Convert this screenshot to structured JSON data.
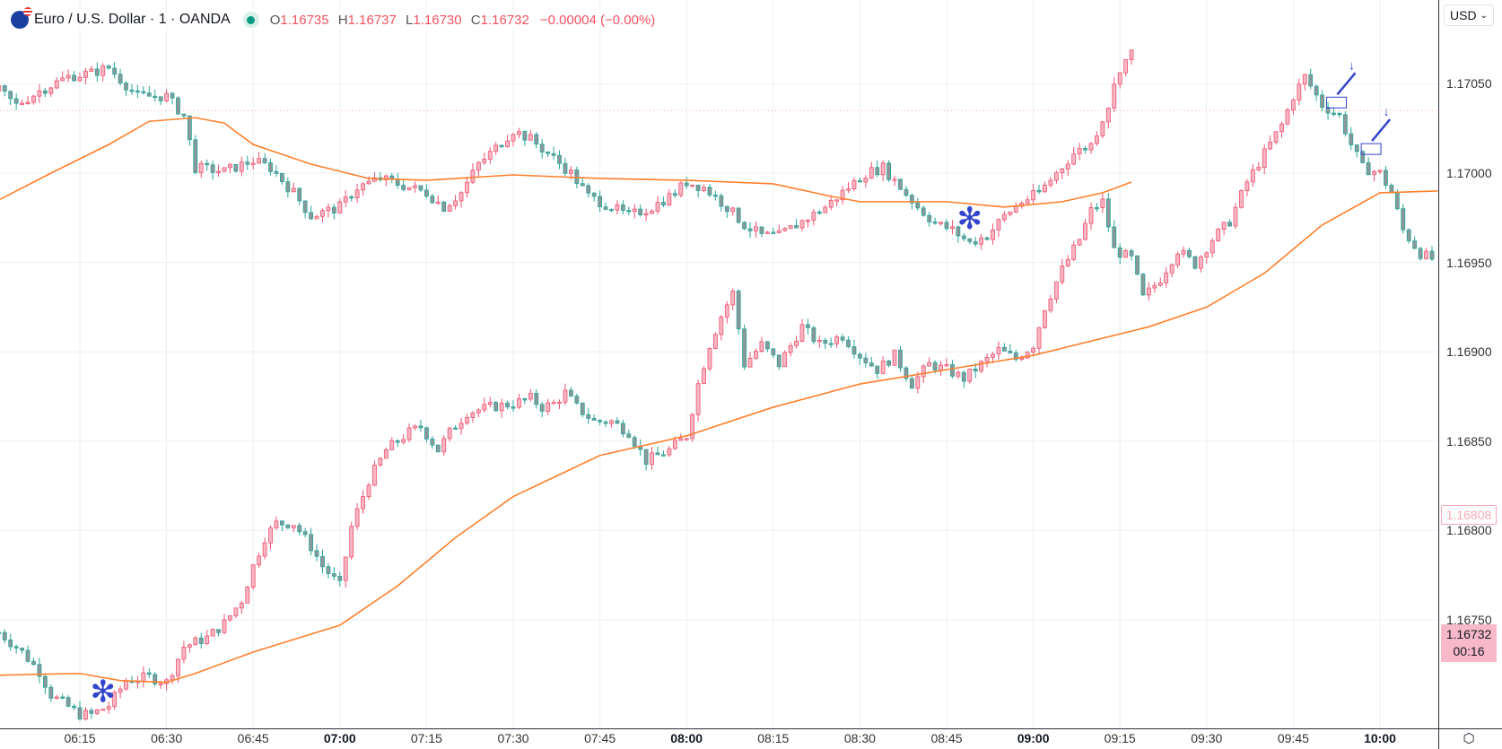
{
  "header": {
    "symbol": "Euro / U.S. Dollar · 1 · OANDA",
    "o_label": "O",
    "o": "1.16735",
    "h_label": "H",
    "h": "1.16737",
    "l_label": "L",
    "l": "1.16730",
    "c_label": "C",
    "c": "1.16732",
    "change": "−0.00004 (−0.00%)",
    "market_status": "open"
  },
  "currency_button": {
    "label": "USD",
    "icon": "chevron-down-icon"
  },
  "price_axis": {
    "labels": [
      "1.17050",
      "1.17000",
      "1.16950",
      "1.16900",
      "1.16850",
      "1.16800",
      "1.16750"
    ],
    "highlight_label": "1.16808",
    "current_price": "1.16732",
    "countdown": "00:16"
  },
  "time_axis": {
    "labels": [
      "06:15",
      "06:30",
      "06:45",
      "07:00",
      "07:15",
      "07:30",
      "07:45",
      "08:00",
      "08:15",
      "08:30",
      "08:45",
      "09:00",
      "09:15",
      "09:30",
      "09:45",
      "10:00"
    ],
    "bold": [
      "07:00",
      "08:00",
      "09:00",
      "10:00"
    ]
  },
  "colors": {
    "up_fill": "#f7b6c2",
    "up_border": "#ef5370",
    "down_fill": "#8d9799",
    "down_border": "#26a69a",
    "ma": "#ff7f2a",
    "grid": "#eaeff5",
    "marker": "#3344cc",
    "ref_line": "#f7a8b8"
  },
  "chart_data": {
    "type": "candlestick",
    "ylim": [
      1.1665,
      1.171
    ],
    "xlim": [
      "06:01",
      "10:10"
    ],
    "grid": true,
    "series": [
      {
        "close_samples": [
          [
            "06:01",
            1.16743
          ],
          [
            "06:05",
            1.16732
          ],
          [
            "06:08",
            1.16721
          ],
          [
            "06:10",
            1.16708
          ],
          [
            "06:15",
            1.16697
          ],
          [
            "06:17",
            1.16697
          ],
          [
            "06:20",
            1.16702
          ],
          [
            "06:23",
            1.16716
          ],
          [
            "06:27",
            1.16718
          ],
          [
            "06:30",
            1.16715
          ],
          [
            "06:33",
            1.16735
          ],
          [
            "06:37",
            1.1674
          ],
          [
            "06:40",
            1.16748
          ],
          [
            "06:43",
            1.16761
          ],
          [
            "06:45",
            1.1678
          ],
          [
            "06:47",
            1.16796
          ],
          [
            "06:49",
            1.16804
          ],
          [
            "06:52",
            1.16804
          ],
          [
            "06:55",
            1.16791
          ],
          [
            "06:57",
            1.1678
          ],
          [
            "07:00",
            1.16769
          ],
          [
            "07:02",
            1.16802
          ],
          [
            "07:05",
            1.16828
          ],
          [
            "07:08",
            1.16845
          ],
          [
            "07:12",
            1.16855
          ],
          [
            "07:14",
            1.16858
          ],
          [
            "07:17",
            1.16845
          ],
          [
            "07:19",
            1.16855
          ],
          [
            "07:22",
            1.16866
          ],
          [
            "07:26",
            1.16869
          ],
          [
            "07:30",
            1.16871
          ],
          [
            "07:33",
            1.16874
          ],
          [
            "07:35",
            1.16869
          ],
          [
            "07:37",
            1.16871
          ],
          [
            "07:39",
            1.16877
          ],
          [
            "07:41",
            1.16869
          ],
          [
            "07:44",
            1.16861
          ],
          [
            "07:47",
            1.16861
          ],
          [
            "07:50",
            1.16855
          ],
          [
            "07:53",
            1.16839
          ],
          [
            "07:57",
            1.16845
          ],
          [
            "08:00",
            1.16853
          ],
          [
            "08:02",
            1.16882
          ],
          [
            "08:04",
            1.16904
          ],
          [
            "08:06",
            1.1692
          ],
          [
            "08:08",
            1.16933
          ],
          [
            "08:10",
            1.16893
          ],
          [
            "08:13",
            1.16904
          ],
          [
            "08:16",
            1.16893
          ],
          [
            "08:20",
            1.16914
          ],
          [
            "08:23",
            1.16904
          ],
          [
            "08:27",
            1.16909
          ],
          [
            "08:30",
            1.16898
          ],
          [
            "08:33",
            1.1689
          ],
          [
            "08:36",
            1.16898
          ],
          [
            "08:39",
            1.16882
          ],
          [
            "08:42",
            1.16893
          ],
          [
            "08:45",
            1.1689
          ],
          [
            "08:48",
            1.16885
          ],
          [
            "08:51",
            1.16893
          ],
          [
            "08:54",
            1.16901
          ],
          [
            "08:57",
            1.16896
          ],
          [
            "09:00",
            1.16904
          ],
          [
            "09:02",
            1.16925
          ],
          [
            "09:05",
            1.16946
          ],
          [
            "09:08",
            1.16963
          ],
          [
            "09:10",
            1.16979
          ],
          [
            "09:12",
            1.16984
          ],
          [
            "09:14",
            1.16957
          ],
          [
            "09:17",
            1.16952
          ],
          [
            "09:19",
            1.1693
          ],
          [
            "09:22",
            1.16941
          ],
          [
            "09:25",
            1.16957
          ],
          [
            "09:28",
            1.16949
          ],
          [
            "09:31",
            1.16963
          ],
          [
            "09:34",
            1.16973
          ],
          [
            "09:37",
            1.16995
          ],
          [
            "09:40",
            1.17011
          ],
          [
            "09:43",
            1.17027
          ],
          [
            "09:45",
            1.17043
          ],
          [
            "09:47",
            1.17054
          ],
          [
            "09:50",
            1.17038
          ],
          [
            "09:53",
            1.17032
          ],
          [
            "09:55",
            1.17016
          ],
          [
            "09:57",
            1.17003
          ],
          [
            "10:00",
            1.17
          ],
          [
            "10:02",
            1.16989
          ],
          [
            "10:04",
            1.16968
          ],
          [
            "10:07",
            1.16955
          ],
          [
            "10:09",
            1.16952
          ]
        ],
        "ma": [
          [
            "06:01",
            1.16719
          ],
          [
            "06:15",
            1.1672
          ],
          [
            "06:22",
            1.16716
          ],
          [
            "06:30",
            1.16715
          ],
          [
            "06:35",
            1.1672
          ],
          [
            "06:45",
            1.16732
          ],
          [
            "07:00",
            1.16747
          ],
          [
            "07:10",
            1.16769
          ],
          [
            "07:20",
            1.16796
          ],
          [
            "07:30",
            1.16819
          ],
          [
            "07:45",
            1.16842
          ],
          [
            "08:00",
            1.16853
          ],
          [
            "08:15",
            1.16869
          ],
          [
            "08:30",
            1.16882
          ],
          [
            "08:45",
            1.1689
          ],
          [
            "09:00",
            1.16898
          ],
          [
            "09:10",
            1.16906
          ],
          [
            "09:20",
            1.16914
          ],
          [
            "09:30",
            1.16925
          ],
          [
            "09:40",
            1.16944
          ],
          [
            "09:50",
            1.16971
          ],
          [
            "10:00",
            1.16989
          ],
          [
            "10:10",
            1.1699
          ]
        ]
      },
      {
        "close_samples": [
          [
            "06:01",
            1.17046
          ],
          [
            "06:04",
            1.17038
          ],
          [
            "06:08",
            1.17046
          ],
          [
            "06:13",
            1.17054
          ],
          [
            "06:17",
            1.17056
          ],
          [
            "06:20",
            1.17059
          ],
          [
            "06:25",
            1.17043
          ],
          [
            "06:30",
            1.17043
          ],
          [
            "06:33",
            1.17032
          ],
          [
            "06:35",
            1.17003
          ],
          [
            "06:40",
            1.17001
          ],
          [
            "06:45",
            1.17007
          ],
          [
            "06:48",
            1.17003
          ],
          [
            "06:52",
            1.16989
          ],
          [
            "06:55",
            1.16976
          ],
          [
            "07:00",
            1.16981
          ],
          [
            "07:03",
            1.16992
          ],
          [
            "07:07",
            1.16997
          ],
          [
            "07:12",
            1.16992
          ],
          [
            "07:15",
            1.16989
          ],
          [
            "07:18",
            1.16981
          ],
          [
            "07:21",
            1.16989
          ],
          [
            "07:24",
            1.17005
          ],
          [
            "07:27",
            1.17014
          ],
          [
            "07:30",
            1.17024
          ],
          [
            "07:33",
            1.17019
          ],
          [
            "07:36",
            1.17011
          ],
          [
            "07:40",
            1.17
          ],
          [
            "07:43",
            1.16987
          ],
          [
            "07:47",
            1.16981
          ],
          [
            "07:50",
            1.16976
          ],
          [
            "07:54",
            1.16981
          ],
          [
            "07:58",
            1.16989
          ],
          [
            "08:00",
            1.16995
          ],
          [
            "08:03",
            1.16992
          ],
          [
            "08:07",
            1.16981
          ],
          [
            "08:10",
            1.16971
          ],
          [
            "08:13",
            1.16965
          ],
          [
            "08:16",
            1.16965
          ],
          [
            "08:20",
            1.16973
          ],
          [
            "08:24",
            1.16981
          ],
          [
            "08:28",
            1.16992
          ],
          [
            "08:31",
            1.17
          ],
          [
            "08:34",
            1.17003
          ],
          [
            "08:37",
            1.16992
          ],
          [
            "08:40",
            1.16981
          ],
          [
            "08:43",
            1.16972
          ],
          [
            "08:46",
            1.16968
          ],
          [
            "08:49",
            1.16961
          ],
          [
            "08:52",
            1.16965
          ],
          [
            "08:55",
            1.16976
          ],
          [
            "08:58",
            1.16984
          ],
          [
            "09:01",
            1.16989
          ],
          [
            "09:04",
            1.17
          ],
          [
            "09:07",
            1.17011
          ],
          [
            "09:10",
            1.17016
          ],
          [
            "09:13",
            1.17038
          ],
          [
            "09:15",
            1.17059
          ],
          [
            "09:17",
            1.17067
          ]
        ],
        "ma": [
          [
            "06:01",
            1.16985
          ],
          [
            "06:10",
            1.17
          ],
          [
            "06:20",
            1.17016
          ],
          [
            "06:27",
            1.17029
          ],
          [
            "06:35",
            1.17031
          ],
          [
            "06:40",
            1.17028
          ],
          [
            "06:45",
            1.17016
          ],
          [
            "06:55",
            1.17005
          ],
          [
            "07:05",
            1.16997
          ],
          [
            "07:15",
            1.16996
          ],
          [
            "07:30",
            1.16999
          ],
          [
            "07:45",
            1.16997
          ],
          [
            "08:00",
            1.16996
          ],
          [
            "08:15",
            1.16994
          ],
          [
            "08:25",
            1.16987
          ],
          [
            "08:30",
            1.16984
          ],
          [
            "08:45",
            1.16984
          ],
          [
            "08:55",
            1.16981
          ],
          [
            "09:05",
            1.16984
          ],
          [
            "09:12",
            1.16989
          ],
          [
            "09:17",
            1.16995
          ]
        ]
      }
    ],
    "reference_line": 1.17035,
    "annotations": [
      {
        "type": "asterisk",
        "time": "06:19",
        "price": 1.16711
      },
      {
        "type": "asterisk",
        "time": "08:49",
        "price": 1.16976
      },
      {
        "type": "box-arrow",
        "time": "09:52",
        "price": 1.1704
      },
      {
        "type": "box-arrow",
        "time": "09:58",
        "price": 1.17014
      }
    ]
  }
}
